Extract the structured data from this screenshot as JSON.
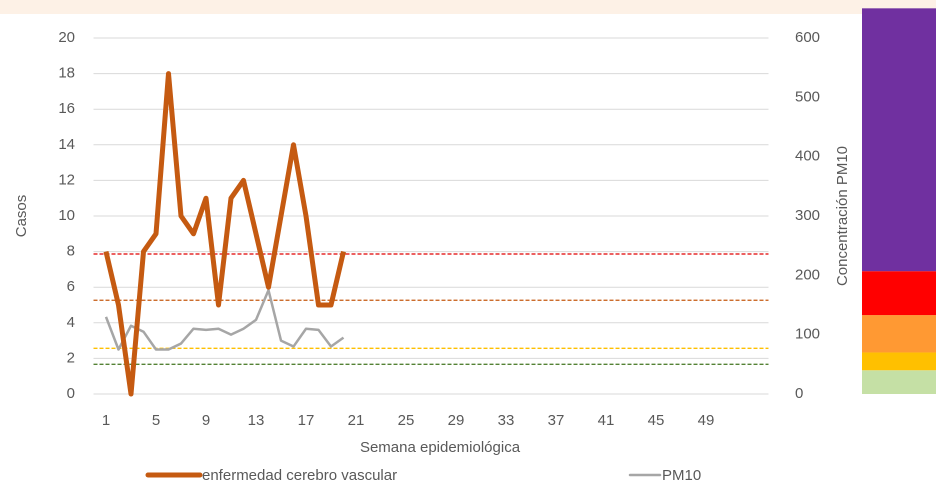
{
  "chart_data": {
    "type": "line",
    "xlabel": "Semana epidemiológica",
    "ylabel": "Casos",
    "y2label": "Concentración PM10",
    "x": [
      1,
      2,
      3,
      4,
      5,
      6,
      7,
      8,
      9,
      10,
      11,
      12,
      13,
      14,
      15,
      16,
      17,
      18,
      19,
      20
    ],
    "xlim": [
      0,
      54
    ],
    "xticks": [
      1,
      5,
      9,
      13,
      17,
      21,
      25,
      29,
      33,
      37,
      41,
      45,
      49
    ],
    "ylim": [
      0,
      20
    ],
    "yticks": [
      0,
      2,
      4,
      6,
      8,
      10,
      12,
      14,
      16,
      18,
      20
    ],
    "y2lim": [
      0,
      600
    ],
    "y2ticks": [
      0,
      100,
      200,
      300,
      400,
      500,
      600
    ],
    "grid": true,
    "series": [
      {
        "name": "enfermedad cerebro vascular",
        "color": "#c55a11",
        "values": [
          8,
          5,
          0,
          8,
          9,
          18,
          10,
          9,
          11,
          5,
          11,
          12,
          9,
          6,
          10,
          14,
          10,
          5,
          5,
          8
        ]
      },
      {
        "name": "PM10",
        "color": "#a6a6a6",
        "axis": "y2",
        "values": [
          130,
          75,
          115,
          105,
          75,
          75,
          85,
          110,
          108,
          110,
          100,
          110,
          125,
          175,
          90,
          80,
          110,
          108,
          80,
          95
        ]
      }
    ],
    "thresholds": [
      {
        "value": 236,
        "color": "#e00000"
      },
      {
        "value": 158,
        "color": "#c55a11"
      },
      {
        "value": 77,
        "color": "#ffc000"
      },
      {
        "value": 50,
        "color": "#548235"
      }
    ],
    "bands": [
      {
        "from": 0,
        "to": 40,
        "color": "#c5e0a5"
      },
      {
        "from": 40,
        "to": 70,
        "color": "#ffc000"
      },
      {
        "from": 70,
        "to": 133,
        "color": "#ff9933"
      },
      {
        "from": 133,
        "to": 207,
        "color": "#ff0000"
      },
      {
        "from": 207,
        "to": 650,
        "color": "#7030a0"
      }
    ]
  }
}
